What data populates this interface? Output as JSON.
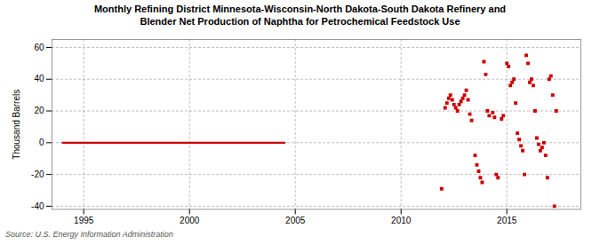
{
  "chart_data": {
    "type": "scatter",
    "title": "Monthly Refining District Minnesota-Wisconsin-North Dakota-South Dakota Refinery and\nBlender Net Production of Naphtha for Petrochemical Feedstock Use",
    "ylabel": "Thousand Barrels",
    "source": "Source: U.S. Energy Information Administration",
    "xlim": [
      1993.5,
      2018.5
    ],
    "ylim": [
      -42,
      65
    ],
    "xticks": [
      1995,
      2000,
      2005,
      2010,
      2015
    ],
    "yticks": [
      -40,
      -20,
      0,
      20,
      40,
      60
    ],
    "grid": true,
    "series": [
      {
        "type": "line",
        "color": "#cc0000",
        "line_style": "solid",
        "x": [
          1994.0,
          2004.5
        ],
        "values": [
          0,
          0
        ]
      },
      {
        "type": "scatter",
        "color": "#cc0000",
        "marker": "square",
        "x": [
          2011.917,
          2012.083,
          2012.167,
          2012.25,
          2012.333,
          2012.417,
          2012.5,
          2012.583,
          2012.667,
          2012.75,
          2012.833,
          2012.917,
          2013.0,
          2013.083,
          2013.167,
          2013.25,
          2013.333,
          2013.5,
          2013.583,
          2013.667,
          2013.75,
          2013.833,
          2013.917,
          2014.0,
          2014.083,
          2014.167,
          2014.333,
          2014.417,
          2014.5,
          2014.583,
          2014.75,
          2014.833,
          2015.0,
          2015.083,
          2015.167,
          2015.25,
          2015.333,
          2015.417,
          2015.5,
          2015.583,
          2015.667,
          2015.75,
          2015.833,
          2015.917,
          2016.0,
          2016.083,
          2016.167,
          2016.25,
          2016.333,
          2016.417,
          2016.5,
          2016.583,
          2016.667,
          2016.75,
          2016.833,
          2016.917,
          2017.0,
          2017.083,
          2017.167,
          2017.25,
          2017.333
        ],
        "values": [
          -29,
          22,
          25,
          28,
          30,
          27,
          24,
          22,
          20,
          24,
          26,
          28,
          30,
          33,
          27,
          18,
          14,
          -8,
          -14,
          -18,
          -22,
          -25,
          51,
          43,
          20,
          17,
          19,
          16,
          -20,
          -22,
          15,
          17,
          50,
          48,
          36,
          38,
          40,
          25,
          6,
          2,
          -2,
          -5,
          -20,
          55,
          50,
          38,
          40,
          36,
          20,
          3,
          -1,
          -5,
          -3,
          0,
          -8,
          -22,
          40,
          42,
          30,
          -40,
          20
        ]
      }
    ]
  }
}
